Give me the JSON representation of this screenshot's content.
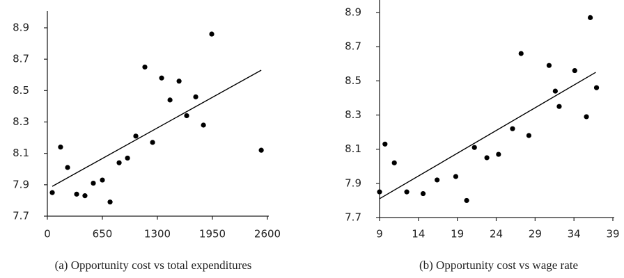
{
  "chart_data": [
    {
      "type": "scatter",
      "caption": "(a) Opportunity cost vs total expenditures",
      "color": "#000000",
      "x": [
        58,
        156,
        239,
        346,
        444,
        543,
        650,
        741,
        848,
        947,
        1045,
        1152,
        1243,
        1350,
        1449,
        1556,
        1646,
        1753,
        1844,
        1942,
        2527
      ],
      "y": [
        7.85,
        8.14,
        8.01,
        7.84,
        7.83,
        7.91,
        7.93,
        7.79,
        8.04,
        8.07,
        8.21,
        8.65,
        8.17,
        8.58,
        8.44,
        8.56,
        8.34,
        8.46,
        8.28,
        8.86,
        8.12
      ],
      "trendline": {
        "x": [
          58,
          2527
        ],
        "y": [
          7.89,
          8.63
        ]
      },
      "xlim": [
        0,
        2600
      ],
      "ylim": [
        7.7,
        8.9
      ],
      "xticks": [
        0,
        650,
        1300,
        1950,
        2600
      ],
      "yticks": [
        7.7,
        7.9,
        8.1,
        8.3,
        8.5,
        8.7,
        8.9
      ]
    },
    {
      "type": "scatter",
      "caption": "(b) Opportunity cost vs wage rate",
      "color": "#000000",
      "x": [
        9.0,
        9.7,
        10.9,
        12.5,
        14.6,
        16.4,
        18.8,
        20.2,
        21.2,
        22.8,
        24.3,
        26.1,
        27.2,
        28.2,
        30.8,
        31.6,
        32.1,
        34.1,
        35.6,
        36.1,
        36.9
      ],
      "y": [
        7.85,
        8.13,
        8.02,
        7.85,
        7.84,
        7.92,
        7.94,
        7.8,
        8.11,
        8.05,
        8.07,
        8.22,
        8.66,
        8.18,
        8.59,
        8.44,
        8.35,
        8.56,
        8.29,
        8.87,
        8.46
      ],
      "trendline": {
        "x": [
          9.0,
          36.8
        ],
        "y": [
          7.81,
          8.55
        ]
      },
      "xlim": [
        9,
        39
      ],
      "ylim": [
        7.7,
        8.9
      ],
      "xticks": [
        9,
        14,
        19,
        24,
        29,
        34,
        39
      ],
      "yticks": [
        7.7,
        7.9,
        8.1,
        8.3,
        8.5,
        8.7,
        8.9
      ]
    }
  ]
}
